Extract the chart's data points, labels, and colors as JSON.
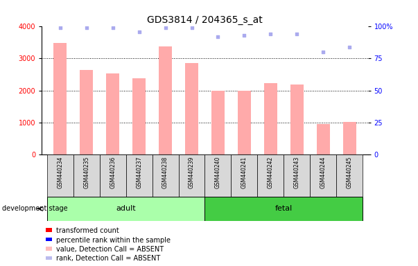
{
  "title": "GDS3814 / 204365_s_at",
  "samples": [
    "GSM440234",
    "GSM440235",
    "GSM440236",
    "GSM440237",
    "GSM440238",
    "GSM440239",
    "GSM440240",
    "GSM440241",
    "GSM440242",
    "GSM440243",
    "GSM440244",
    "GSM440245"
  ],
  "bar_values": [
    3480,
    2650,
    2540,
    2380,
    3370,
    2860,
    2000,
    2000,
    2240,
    2190,
    940,
    1020
  ],
  "rank_values": [
    99,
    99,
    99,
    96,
    99,
    99,
    92,
    93,
    94,
    94,
    80,
    84
  ],
  "bar_color": "#ffaaaa",
  "rank_color": "#aaaaee",
  "ylim_left": [
    0,
    4000
  ],
  "ylim_right": [
    0,
    100
  ],
  "yticks_left": [
    0,
    1000,
    2000,
    3000,
    4000
  ],
  "yticks_right": [
    0,
    25,
    50,
    75,
    100
  ],
  "groups": [
    {
      "label": "adult",
      "start": 0,
      "end": 5,
      "color": "#aaffaa"
    },
    {
      "label": "fetal",
      "start": 6,
      "end": 11,
      "color": "#44cc44"
    }
  ],
  "dev_stage_label": "development stage",
  "legend_items": [
    {
      "label": "transformed count",
      "color": "#ff0000"
    },
    {
      "label": "percentile rank within the sample",
      "color": "#0000ff"
    },
    {
      "label": "value, Detection Call = ABSENT",
      "color": "#ffbbbb"
    },
    {
      "label": "rank, Detection Call = ABSENT",
      "color": "#bbbbee"
    }
  ],
  "grid_color": "black",
  "background_color": "#ffffff"
}
